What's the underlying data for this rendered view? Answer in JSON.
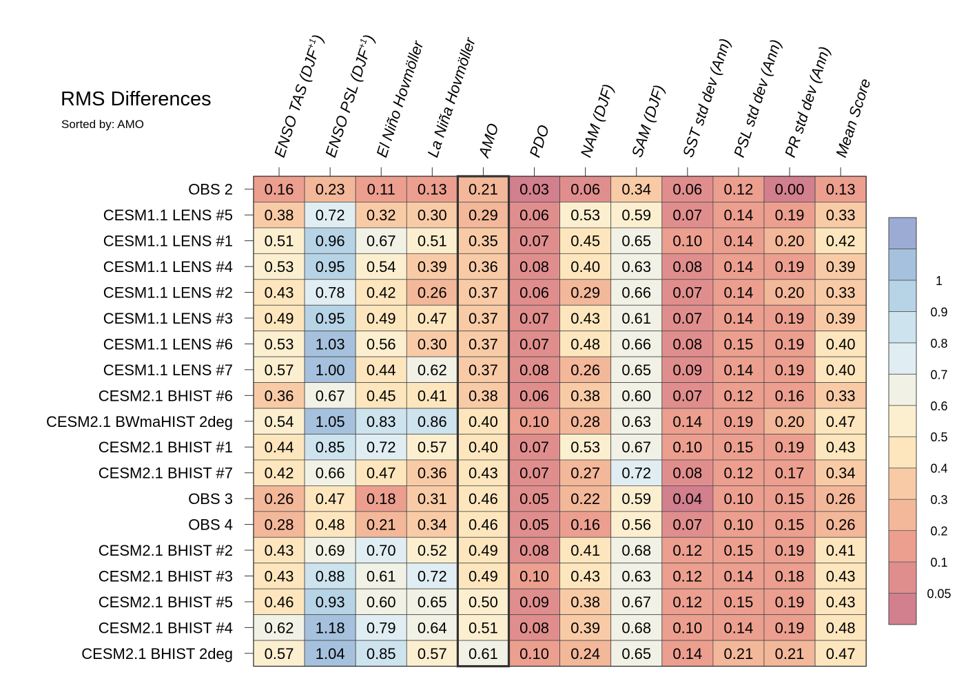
{
  "chart_data": {
    "type": "heatmap",
    "title": "RMS Differences",
    "subtitle": "Sorted by: AMO",
    "highlighted_column": "AMO",
    "columns": [
      {
        "text": "ENSO TAS (DJF",
        "sup": "+1",
        "close": ")"
      },
      {
        "text": "ENSO PSL (DJF",
        "sup": "+1",
        "close": ")"
      },
      {
        "text": "El Niño Hovmöller"
      },
      {
        "text": "La Niña Hovmöller"
      },
      {
        "text": "AMO"
      },
      {
        "text": "PDO"
      },
      {
        "text": "NAM (DJF)"
      },
      {
        "text": "SAM (DJF)"
      },
      {
        "text": "SST std dev (Ann)"
      },
      {
        "text": "PSL std dev (Ann)"
      },
      {
        "text": "PR std dev (Ann)"
      },
      {
        "text": "Mean Score"
      }
    ],
    "rows": [
      "OBS 2",
      "CESM1.1 LENS #5",
      "CESM1.1 LENS #1",
      "CESM1.1 LENS #4",
      "CESM1.1 LENS #2",
      "CESM1.1 LENS #3",
      "CESM1.1 LENS #6",
      "CESM1.1 LENS #7",
      "CESM2.1 BHIST #6",
      "CESM2.1 BWmaHIST 2deg",
      "CESM2.1 BHIST #1",
      "CESM2.1 BHIST #7",
      "OBS 3",
      "OBS 4",
      "CESM2.1 BHIST #2",
      "CESM2.1 BHIST #3",
      "CESM2.1 BHIST #5",
      "CESM2.1 BHIST #4",
      "CESM2.1 BHIST 2deg"
    ],
    "values": [
      [
        "0.16",
        "0.23",
        "0.11",
        "0.13",
        "0.21",
        "0.03",
        "0.06",
        "0.34",
        "0.06",
        "0.12",
        "0.00",
        "0.13"
      ],
      [
        "0.38",
        "0.72",
        "0.32",
        "0.30",
        "0.29",
        "0.06",
        "0.53",
        "0.59",
        "0.07",
        "0.14",
        "0.19",
        "0.33"
      ],
      [
        "0.51",
        "0.96",
        "0.67",
        "0.51",
        "0.35",
        "0.07",
        "0.45",
        "0.65",
        "0.10",
        "0.14",
        "0.20",
        "0.42"
      ],
      [
        "0.53",
        "0.95",
        "0.54",
        "0.39",
        "0.36",
        "0.08",
        "0.40",
        "0.63",
        "0.08",
        "0.14",
        "0.19",
        "0.39"
      ],
      [
        "0.43",
        "0.78",
        "0.42",
        "0.26",
        "0.37",
        "0.06",
        "0.29",
        "0.66",
        "0.07",
        "0.14",
        "0.20",
        "0.33"
      ],
      [
        "0.49",
        "0.95",
        "0.49",
        "0.47",
        "0.37",
        "0.07",
        "0.43",
        "0.61",
        "0.07",
        "0.14",
        "0.19",
        "0.39"
      ],
      [
        "0.53",
        "1.03",
        "0.56",
        "0.30",
        "0.37",
        "0.07",
        "0.48",
        "0.66",
        "0.08",
        "0.15",
        "0.19",
        "0.40"
      ],
      [
        "0.57",
        "1.00",
        "0.44",
        "0.62",
        "0.37",
        "0.08",
        "0.26",
        "0.65",
        "0.09",
        "0.14",
        "0.19",
        "0.40"
      ],
      [
        "0.36",
        "0.67",
        "0.45",
        "0.41",
        "0.38",
        "0.06",
        "0.38",
        "0.60",
        "0.07",
        "0.12",
        "0.16",
        "0.33"
      ],
      [
        "0.54",
        "1.05",
        "0.83",
        "0.86",
        "0.40",
        "0.10",
        "0.28",
        "0.63",
        "0.14",
        "0.19",
        "0.20",
        "0.47"
      ],
      [
        "0.44",
        "0.85",
        "0.72",
        "0.57",
        "0.40",
        "0.07",
        "0.53",
        "0.67",
        "0.10",
        "0.15",
        "0.19",
        "0.43"
      ],
      [
        "0.42",
        "0.66",
        "0.47",
        "0.36",
        "0.43",
        "0.07",
        "0.27",
        "0.72",
        "0.08",
        "0.12",
        "0.17",
        "0.34"
      ],
      [
        "0.26",
        "0.47",
        "0.18",
        "0.31",
        "0.46",
        "0.05",
        "0.22",
        "0.59",
        "0.04",
        "0.10",
        "0.15",
        "0.26"
      ],
      [
        "0.28",
        "0.48",
        "0.21",
        "0.34",
        "0.46",
        "0.05",
        "0.16",
        "0.56",
        "0.07",
        "0.10",
        "0.15",
        "0.26"
      ],
      [
        "0.43",
        "0.69",
        "0.70",
        "0.52",
        "0.49",
        "0.08",
        "0.41",
        "0.68",
        "0.12",
        "0.15",
        "0.19",
        "0.41"
      ],
      [
        "0.43",
        "0.88",
        "0.61",
        "0.72",
        "0.49",
        "0.10",
        "0.43",
        "0.63",
        "0.12",
        "0.14",
        "0.18",
        "0.43"
      ],
      [
        "0.46",
        "0.93",
        "0.60",
        "0.65",
        "0.50",
        "0.09",
        "0.38",
        "0.67",
        "0.12",
        "0.15",
        "0.19",
        "0.43"
      ],
      [
        "0.62",
        "1.18",
        "0.79",
        "0.64",
        "0.51",
        "0.08",
        "0.39",
        "0.68",
        "0.10",
        "0.14",
        "0.19",
        "0.48"
      ],
      [
        "0.57",
        "1.04",
        "0.85",
        "0.57",
        "0.61",
        "0.10",
        "0.24",
        "0.65",
        "0.14",
        "0.21",
        "0.21",
        "0.47"
      ]
    ],
    "colorbar": {
      "levels": [
        "0.05",
        "0.1",
        "0.2",
        "0.3",
        "0.4",
        "0.5",
        "0.6",
        "0.7",
        "0.8",
        "0.9",
        "1"
      ],
      "colors": [
        "#d27f8e",
        "#e08e8d",
        "#ec9f8f",
        "#f3b799",
        "#f8cba6",
        "#fde6bd",
        "#fcefd0",
        "#f1f1e5",
        "#e0eef3",
        "#cde3ee",
        "#b7d3e6",
        "#a5c1dd",
        "#9cabd4"
      ]
    }
  }
}
